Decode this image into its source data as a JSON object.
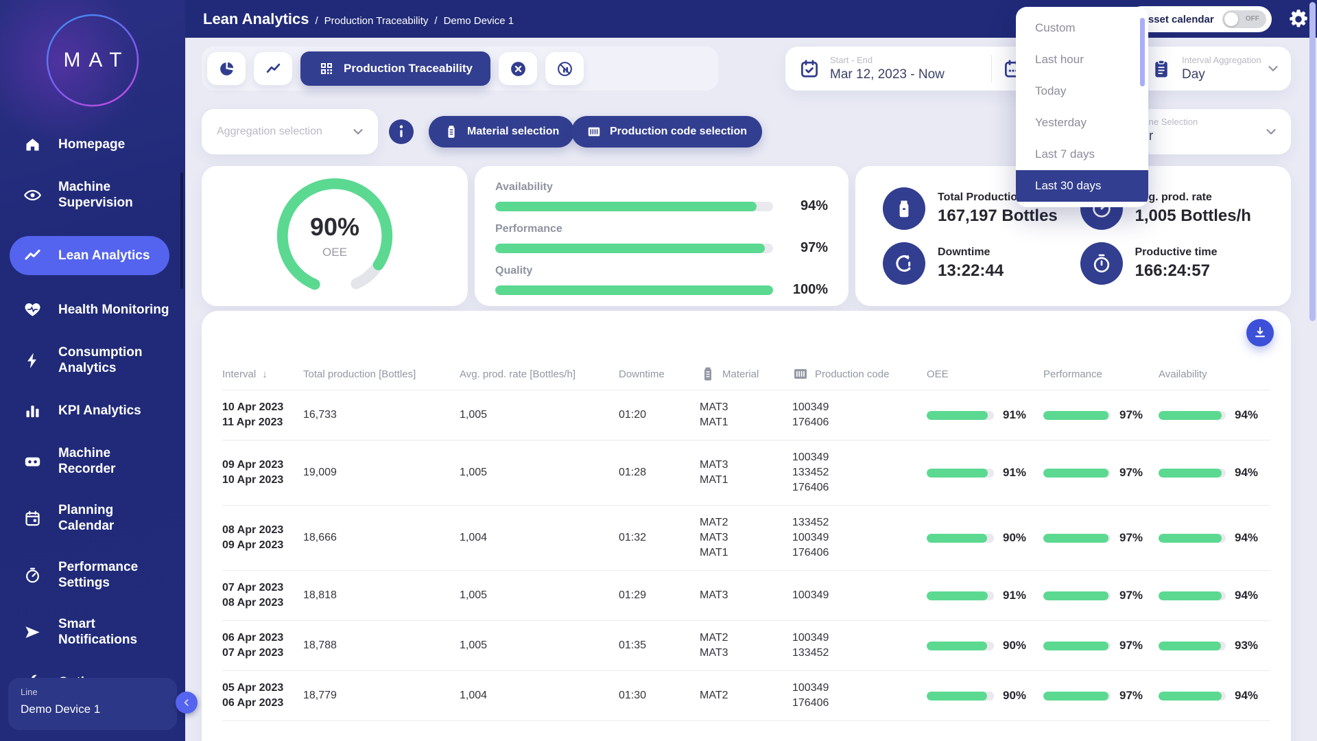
{
  "app": {
    "title": "Lean Analytics",
    "breadcrumb": [
      "Production Traceability",
      "Demo Device 1"
    ],
    "logo_text": "MAT"
  },
  "header": {
    "asset_calendar_label": "Asset calendar",
    "asset_calendar_state": "OFF"
  },
  "sidebar": {
    "items": [
      {
        "label": "Homepage",
        "icon": "home",
        "active": false
      },
      {
        "label": "Machine Supervision",
        "icon": "eye",
        "active": false
      },
      {
        "label": "Lean Analytics",
        "icon": "trend",
        "active": true
      },
      {
        "label": "Health Monitoring",
        "icon": "heart",
        "active": false
      },
      {
        "label": "Consumption Analytics",
        "icon": "bolt",
        "active": false
      },
      {
        "label": "KPI Analytics",
        "icon": "bar-chart",
        "active": false
      },
      {
        "label": "Machine Recorder",
        "icon": "recorder",
        "active": false
      },
      {
        "label": "Planning Calendar",
        "icon": "calendar",
        "active": false
      },
      {
        "label": "Performance Settings",
        "icon": "gauge",
        "active": false
      },
      {
        "label": "Smart Notifications",
        "icon": "send",
        "active": false
      },
      {
        "label": "Options",
        "icon": "wrench",
        "active": false
      }
    ],
    "device_card": {
      "label": "Line",
      "value": "Demo Device 1"
    }
  },
  "toolbar": {
    "traceability_tab": "Production Traceability"
  },
  "filters": {
    "date_range": {
      "label": "Start - End",
      "value": "Mar 12, 2023 - Now"
    },
    "interval_aggregation": {
      "label": "Interval Aggregation",
      "value": "Day"
    },
    "machine_selection": {
      "label": "Machine Selection",
      "value": "Filler"
    },
    "aggregation_placeholder": "Aggregation selection",
    "material_button": "Material selection",
    "production_code_button": "Production code selection"
  },
  "period_dropdown": {
    "items": [
      "Custom",
      "Last hour",
      "Today",
      "Yesterday",
      "Last 7 days",
      "Last 30 days"
    ],
    "selected": "Last 30 days"
  },
  "kpis": {
    "gauge": {
      "value": "90%",
      "label": "OEE",
      "percent": 90
    },
    "bars": [
      {
        "label": "Availability",
        "value": 94
      },
      {
        "label": "Performance",
        "value": 97
      },
      {
        "label": "Quality",
        "value": 100
      }
    ],
    "stats": [
      {
        "label": "Total Production",
        "value": "167,197 Bottles",
        "icon": "bottle"
      },
      {
        "label": "Avg. prod. rate",
        "value": "1,005 Bottles/h",
        "icon": "speedometer"
      },
      {
        "label": "Downtime",
        "value": "13:22:44",
        "icon": "downtime"
      },
      {
        "label": "Productive time",
        "value": "166:24:57",
        "icon": "stopwatch"
      }
    ]
  },
  "table": {
    "columns": [
      {
        "label": "Interval",
        "sort": true
      },
      {
        "label": "Total production [Bottles]"
      },
      {
        "label": "Avg. prod. rate [Bottles/h]"
      },
      {
        "label": "Downtime"
      },
      {
        "label": "Material",
        "icon": "material"
      },
      {
        "label": "Production code",
        "icon": "barcode"
      },
      {
        "label": "OEE"
      },
      {
        "label": "Performance"
      },
      {
        "label": "Availability"
      }
    ],
    "rows": [
      {
        "interval": [
          "10 Apr 2023",
          "11 Apr 2023"
        ],
        "total": "16,733",
        "rate": "1,005",
        "downtime": "01:20",
        "materials": [
          "MAT3",
          "MAT1"
        ],
        "codes": [
          "100349",
          "176406"
        ],
        "oee": 91,
        "performance": 97,
        "availability": 94
      },
      {
        "interval": [
          "09 Apr 2023",
          "10 Apr 2023"
        ],
        "total": "19,009",
        "rate": "1,005",
        "downtime": "01:28",
        "materials": [
          "MAT3",
          "MAT1"
        ],
        "codes": [
          "100349",
          "133452",
          "176406"
        ],
        "oee": 91,
        "performance": 97,
        "availability": 94
      },
      {
        "interval": [
          "08 Apr 2023",
          "09 Apr 2023"
        ],
        "total": "18,666",
        "rate": "1,004",
        "downtime": "01:32",
        "materials": [
          "MAT2",
          "MAT3",
          "MAT1"
        ],
        "codes": [
          "133452",
          "100349",
          "176406"
        ],
        "oee": 90,
        "performance": 97,
        "availability": 94
      },
      {
        "interval": [
          "07 Apr 2023",
          "08 Apr 2023"
        ],
        "total": "18,818",
        "rate": "1,005",
        "downtime": "01:29",
        "materials": [
          "MAT3"
        ],
        "codes": [
          "100349"
        ],
        "oee": 91,
        "performance": 97,
        "availability": 94
      },
      {
        "interval": [
          "06 Apr 2023",
          "07 Apr 2023"
        ],
        "total": "18,788",
        "rate": "1,005",
        "downtime": "01:35",
        "materials": [
          "MAT2",
          "MAT3"
        ],
        "codes": [
          "100349",
          "133452"
        ],
        "oee": 90,
        "performance": 97,
        "availability": 93
      },
      {
        "interval": [
          "05 Apr 2023",
          "06 Apr 2023"
        ],
        "total": "18,779",
        "rate": "1,004",
        "downtime": "01:30",
        "materials": [
          "MAT2"
        ],
        "codes": [
          "100349",
          "176406"
        ],
        "oee": 90,
        "performance": 97,
        "availability": 94
      }
    ]
  },
  "colors": {
    "navy": "#202a78",
    "accent_blue": "#323e8f",
    "active_blue": "#5464ee",
    "green": "#5bd991",
    "page_bg": "#e9eaf4",
    "download_blue": "#3c50d8"
  }
}
